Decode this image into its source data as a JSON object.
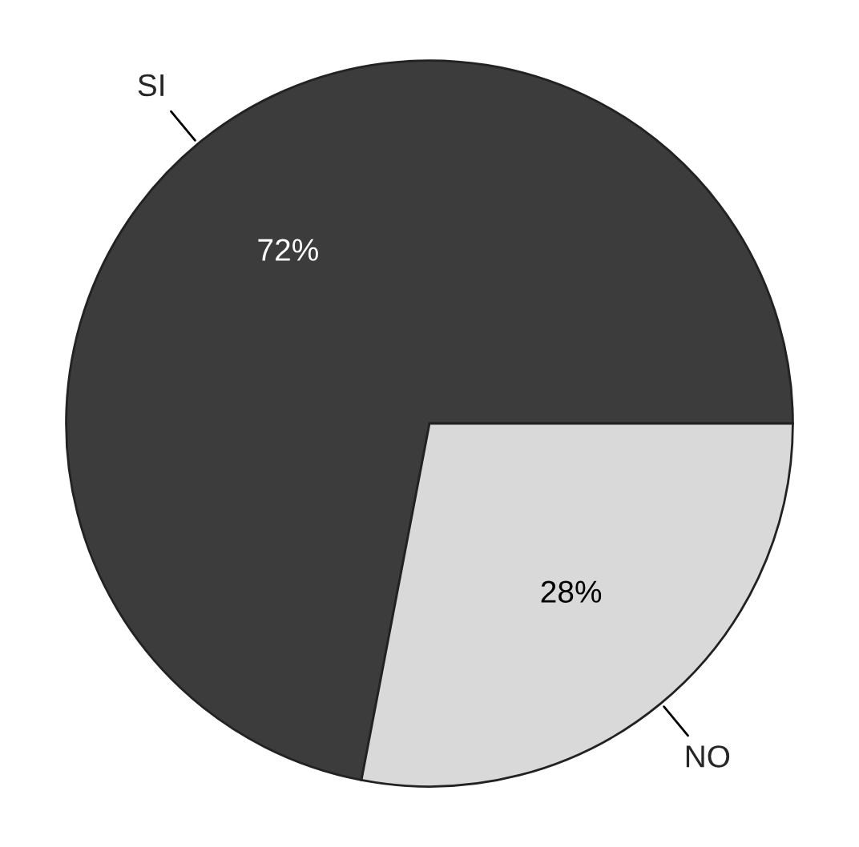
{
  "chart_data": {
    "type": "pie",
    "categories": [
      "SI",
      "NO"
    ],
    "values": [
      72,
      28
    ],
    "value_labels": [
      "72%",
      "28%"
    ],
    "colors": [
      "#3c3c3c",
      "#d9d9d9"
    ]
  }
}
